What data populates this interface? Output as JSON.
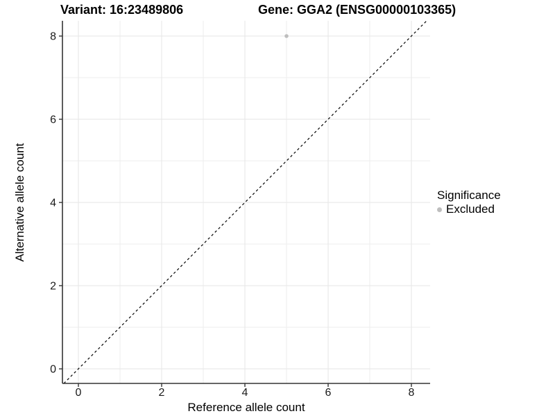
{
  "titles": {
    "variant": "Variant: 16:23489806",
    "gene": "Gene: GGA2 (ENSG00000103365)"
  },
  "chart_data": {
    "type": "scatter",
    "title": "Variant: 16:23489806    Gene: GGA2 (ENSG00000103365)",
    "xlabel": "Reference allele count",
    "ylabel": "Alternative allele count",
    "xlim": [
      -0.4,
      8.45
    ],
    "ylim": [
      -0.35,
      8.37
    ],
    "x_ticks": [
      0,
      2,
      4,
      6,
      8
    ],
    "y_ticks": [
      0,
      2,
      4,
      6,
      8
    ],
    "x_minor_ticks": [
      1,
      3,
      5,
      7
    ],
    "y_minor_ticks": [
      1,
      3,
      5,
      7
    ],
    "grid": true,
    "series": [
      {
        "name": "Excluded",
        "color": "#bebebe",
        "points": [
          {
            "x": 5,
            "y": 8
          }
        ]
      }
    ],
    "reference_line": {
      "type": "identity",
      "slope": 1,
      "intercept": 0,
      "style": "dashed",
      "color": "#000000"
    },
    "legend": {
      "title": "Significance",
      "position": "right",
      "entries": [
        {
          "label": "Excluded",
          "color": "#bebebe"
        }
      ]
    }
  },
  "colors": {
    "background": "#ffffff",
    "grid_major": "#e6e6e6",
    "grid_minor": "#ededed",
    "axis_line": "#333333",
    "tick_mark": "#333333",
    "tick_label": "#1a1a1a",
    "point": "#bebebe",
    "reference_line": "#000000"
  }
}
